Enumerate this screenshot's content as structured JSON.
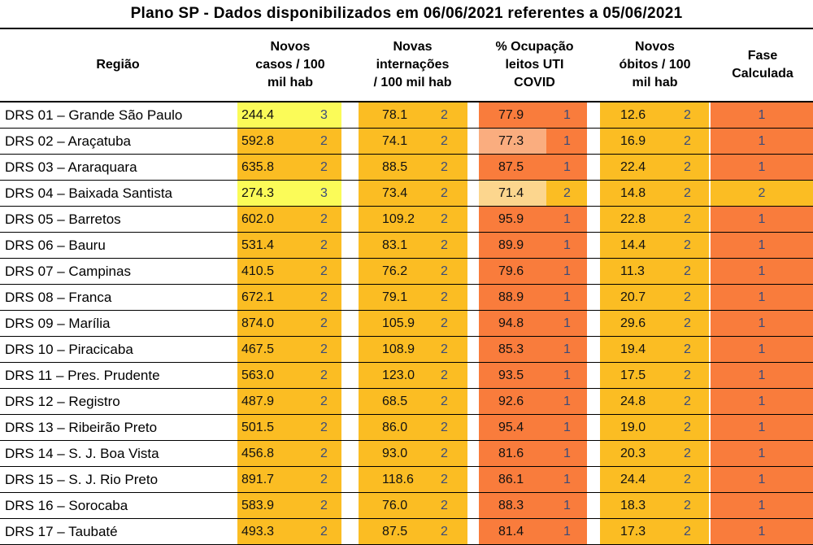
{
  "title": "Plano SP - Dados disponibilizados em 06/06/2021 referentes a 05/06/2021",
  "headers": {
    "regiao": "Região",
    "casos": [
      "Novos",
      "casos / 100",
      "mil hab"
    ],
    "internacoes": [
      "Novas",
      "internações",
      "/ 100 mil hab"
    ],
    "ocupacao": [
      "% Ocupação",
      "leitos UTI",
      "COVID"
    ],
    "obitos": [
      "Novos",
      "óbitos / 100",
      "mil hab"
    ],
    "fase": [
      "Fase",
      "Calculada"
    ]
  },
  "colors": {
    "phase_1": "#f97c3c",
    "phase_2": "#fbbd23",
    "phase_3": "#fbfb58",
    "ocupacao_phase_1_light": "#faad7f",
    "ocupacao_phase_2_light": "#fcd68e"
  },
  "chart_data": {
    "type": "table",
    "title": "Plano SP - Dados disponibilizados em 06/06/2021 referentes a 05/06/2021",
    "columns": [
      "Região",
      "Novos casos / 100 mil hab",
      "Novas internações / 100 mil hab",
      "% Ocupação leitos UTI COVID",
      "Novos óbitos / 100 mil hab",
      "Fase Calculada"
    ],
    "rows": [
      {
        "regiao": "DRS 01 – Grande São Paulo",
        "casos": "244.4",
        "casos_fase": "3",
        "intern": "78.1",
        "intern_fase": "2",
        "ocup": "77.9",
        "ocup_fase": "1",
        "ocup_light": false,
        "obitos": "12.6",
        "obitos_fase": "2",
        "fase": "1"
      },
      {
        "regiao": "DRS 02 – Araçatuba",
        "casos": "592.8",
        "casos_fase": "2",
        "intern": "74.1",
        "intern_fase": "2",
        "ocup": "77.3",
        "ocup_fase": "1",
        "ocup_light": true,
        "obitos": "16.9",
        "obitos_fase": "2",
        "fase": "1"
      },
      {
        "regiao": "DRS 03 – Araraquara",
        "casos": "635.8",
        "casos_fase": "2",
        "intern": "88.5",
        "intern_fase": "2",
        "ocup": "87.5",
        "ocup_fase": "1",
        "ocup_light": false,
        "obitos": "22.4",
        "obitos_fase": "2",
        "fase": "1"
      },
      {
        "regiao": "DRS 04 – Baixada Santista",
        "casos": "274.3",
        "casos_fase": "3",
        "intern": "73.4",
        "intern_fase": "2",
        "ocup": "71.4",
        "ocup_fase": "2",
        "ocup_light": true,
        "obitos": "14.8",
        "obitos_fase": "2",
        "fase": "2"
      },
      {
        "regiao": "DRS 05 – Barretos",
        "casos": "602.0",
        "casos_fase": "2",
        "intern": "109.2",
        "intern_fase": "2",
        "ocup": "95.9",
        "ocup_fase": "1",
        "ocup_light": false,
        "obitos": "22.8",
        "obitos_fase": "2",
        "fase": "1"
      },
      {
        "regiao": "DRS 06 – Bauru",
        "casos": "531.4",
        "casos_fase": "2",
        "intern": "83.1",
        "intern_fase": "2",
        "ocup": "89.9",
        "ocup_fase": "1",
        "ocup_light": false,
        "obitos": "14.4",
        "obitos_fase": "2",
        "fase": "1"
      },
      {
        "regiao": "DRS 07 – Campinas",
        "casos": "410.5",
        "casos_fase": "2",
        "intern": "76.2",
        "intern_fase": "2",
        "ocup": "79.6",
        "ocup_fase": "1",
        "ocup_light": false,
        "obitos": "11.3",
        "obitos_fase": "2",
        "fase": "1"
      },
      {
        "regiao": "DRS 08 – Franca",
        "casos": "672.1",
        "casos_fase": "2",
        "intern": "79.1",
        "intern_fase": "2",
        "ocup": "88.9",
        "ocup_fase": "1",
        "ocup_light": false,
        "obitos": "20.7",
        "obitos_fase": "2",
        "fase": "1"
      },
      {
        "regiao": "DRS 09 – Marília",
        "casos": "874.0",
        "casos_fase": "2",
        "intern": "105.9",
        "intern_fase": "2",
        "ocup": "94.8",
        "ocup_fase": "1",
        "ocup_light": false,
        "obitos": "29.6",
        "obitos_fase": "2",
        "fase": "1"
      },
      {
        "regiao": "DRS 10 – Piracicaba",
        "casos": "467.5",
        "casos_fase": "2",
        "intern": "108.9",
        "intern_fase": "2",
        "ocup": "85.3",
        "ocup_fase": "1",
        "ocup_light": false,
        "obitos": "19.4",
        "obitos_fase": "2",
        "fase": "1"
      },
      {
        "regiao": "DRS 11 – Pres. Prudente",
        "casos": "563.0",
        "casos_fase": "2",
        "intern": "123.0",
        "intern_fase": "2",
        "ocup": "93.5",
        "ocup_fase": "1",
        "ocup_light": false,
        "obitos": "17.5",
        "obitos_fase": "2",
        "fase": "1"
      },
      {
        "regiao": "DRS 12 – Registro",
        "casos": "487.9",
        "casos_fase": "2",
        "intern": "68.5",
        "intern_fase": "2",
        "ocup": "92.6",
        "ocup_fase": "1",
        "ocup_light": false,
        "obitos": "24.8",
        "obitos_fase": "2",
        "fase": "1"
      },
      {
        "regiao": "DRS 13 – Ribeirão Preto",
        "casos": "501.5",
        "casos_fase": "2",
        "intern": "86.0",
        "intern_fase": "2",
        "ocup": "95.4",
        "ocup_fase": "1",
        "ocup_light": false,
        "obitos": "19.0",
        "obitos_fase": "2",
        "fase": "1"
      },
      {
        "regiao": "DRS 14 – S. J. Boa Vista",
        "casos": "456.8",
        "casos_fase": "2",
        "intern": "93.0",
        "intern_fase": "2",
        "ocup": "81.6",
        "ocup_fase": "1",
        "ocup_light": false,
        "obitos": "20.3",
        "obitos_fase": "2",
        "fase": "1"
      },
      {
        "regiao": "DRS 15 – S. J. Rio Preto",
        "casos": "891.7",
        "casos_fase": "2",
        "intern": "118.6",
        "intern_fase": "2",
        "ocup": "86.1",
        "ocup_fase": "1",
        "ocup_light": false,
        "obitos": "24.4",
        "obitos_fase": "2",
        "fase": "1"
      },
      {
        "regiao": "DRS 16 – Sorocaba",
        "casos": "583.9",
        "casos_fase": "2",
        "intern": "76.0",
        "intern_fase": "2",
        "ocup": "88.3",
        "ocup_fase": "1",
        "ocup_light": false,
        "obitos": "18.3",
        "obitos_fase": "2",
        "fase": "1"
      },
      {
        "regiao": "DRS 17 – Taubaté",
        "casos": "493.3",
        "casos_fase": "2",
        "intern": "87.5",
        "intern_fase": "2",
        "ocup": "81.4",
        "ocup_fase": "1",
        "ocup_light": false,
        "obitos": "17.3",
        "obitos_fase": "2",
        "fase": "1"
      }
    ]
  }
}
